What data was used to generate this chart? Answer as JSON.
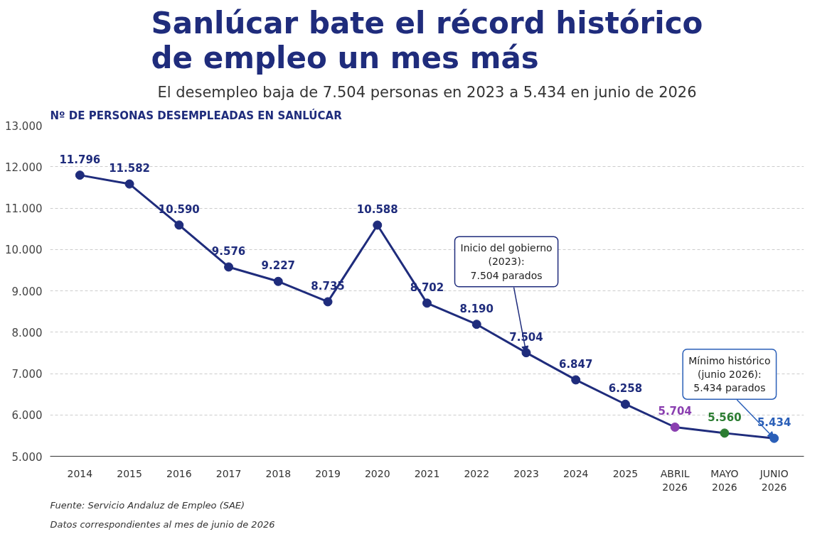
{
  "chart_data": {
    "type": "line",
    "title": "Sanlúcar bate el récord histórico\nde empleo un mes más",
    "subtitle": "El desempleo baja de 7.504 personas en 2023 a 5.434 en junio de 2026",
    "ylabel": "Nº DE PERSONAS DESEMPLEADAS EN SANLÚCAR",
    "categories": [
      "2014",
      "2015",
      "2016",
      "2017",
      "2018",
      "2019",
      "2020",
      "2021",
      "2022",
      "2023",
      "2024",
      "2025",
      "ABRIL\n2026",
      "MAYO\n2026",
      "JUNIO\n2026"
    ],
    "values": [
      11796,
      11582,
      10590,
      9576,
      9227,
      8735,
      10588,
      8702,
      8190,
      7504,
      6847,
      6258,
      5704,
      5560,
      5434
    ],
    "colors": [
      "#1f2c7c",
      "#1f2c7c",
      "#1f2c7c",
      "#1f2c7c",
      "#1f2c7c",
      "#1f2c7c",
      "#1f2c7c",
      "#1f2c7c",
      "#1f2c7c",
      "#1f2c7c",
      "#1f2c7c",
      "#1f2c7c",
      "#8a3fb0",
      "#2c7d32",
      "#2a5fb8"
    ],
    "value_labels": [
      "11.796",
      "11.582",
      "10.590",
      "9.576",
      "9.227",
      "8.735",
      "10.588",
      "8.702",
      "8.190",
      "7.504",
      "6.847",
      "6.258",
      "5.704",
      "5.560",
      "5.434"
    ],
    "ylim": [
      5000,
      13000
    ],
    "yticks": [
      {
        "value": 5000,
        "label": "5.000"
      },
      {
        "value": 6000,
        "label": "6.000"
      },
      {
        "value": 7000,
        "label": "7.000"
      },
      {
        "value": 8000,
        "label": "8.000"
      },
      {
        "value": 9000,
        "label": "9.000"
      },
      {
        "value": 10000,
        "label": "10.000"
      },
      {
        "value": 11000,
        "label": "11.000"
      },
      {
        "value": 12000,
        "label": "12.000"
      },
      {
        "value": 13000,
        "label": "13.000"
      }
    ],
    "grid": "y",
    "marker": "circle",
    "line_style": "solid",
    "annotations": [
      {
        "text": "Inicio del gobierno\n(2023):\n7.504 parados",
        "x": "2023",
        "y": 7504
      },
      {
        "text": "Mínimo histórico\n(junio 2026):\n5.434 parados",
        "x": "JUNIO\n2026",
        "y": 5434
      },
      "Fuente: Servicio Andaluz de Empleo (SAE)",
      "Datos correspondientes al mes de junio de 2026"
    ]
  }
}
